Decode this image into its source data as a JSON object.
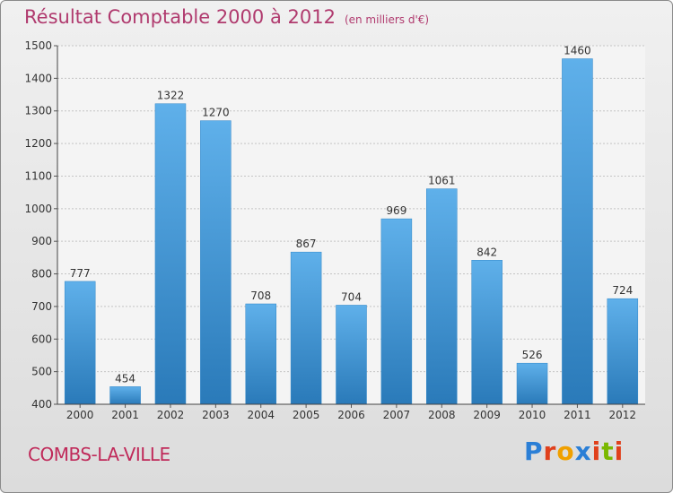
{
  "title": "Résultat Comptable 2000 à 2012",
  "unit": "(en milliers d'€)",
  "city": "COMBS-LA-VILLE",
  "logo": {
    "text": "Proxiti",
    "letters": [
      {
        "ch": "P",
        "color": "#2b7fd6"
      },
      {
        "ch": "r",
        "color": "#e0401c"
      },
      {
        "ch": "o",
        "color": "#f0a000"
      },
      {
        "ch": "x",
        "color": "#2b7fd6"
      },
      {
        "ch": "i",
        "color": "#e0401c"
      },
      {
        "ch": "t",
        "color": "#7ab800"
      },
      {
        "ch": "i",
        "color": "#e0401c"
      }
    ]
  },
  "chart_data": {
    "type": "bar",
    "title": "Résultat Comptable 2000 à 2012",
    "subtitle": "(en milliers d'€)",
    "xlabel": "",
    "ylabel": "",
    "categories": [
      "2000",
      "2001",
      "2002",
      "2003",
      "2004",
      "2005",
      "2006",
      "2007",
      "2008",
      "2009",
      "2010",
      "2011",
      "2012"
    ],
    "values": [
      777,
      454,
      1322,
      1270,
      708,
      867,
      704,
      969,
      1061,
      842,
      526,
      1460,
      724
    ],
    "ylim": [
      400,
      1500
    ],
    "yticks": [
      400,
      500,
      600,
      700,
      800,
      900,
      1000,
      1100,
      1200,
      1300,
      1400,
      1500
    ],
    "grid": true,
    "bar_color": "#3f97d8"
  }
}
